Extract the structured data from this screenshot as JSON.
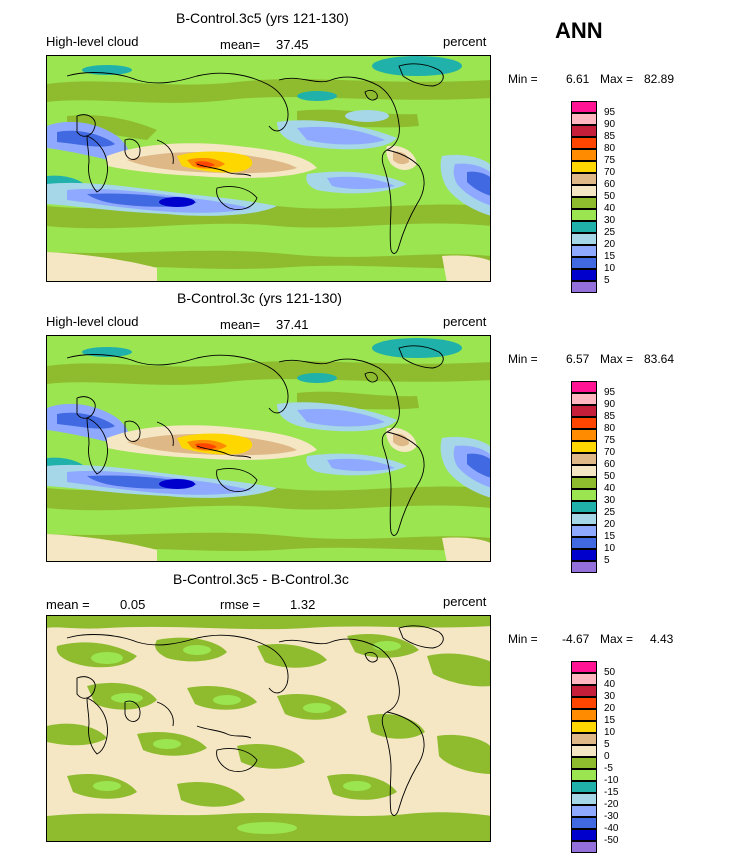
{
  "season": "ANN",
  "panels": [
    {
      "title": "B-Control.3c5 (yrs 121-130)",
      "left_label": "High-level cloud",
      "stat_label": "mean=",
      "stat_value": "37.45",
      "units": "percent",
      "min_label": "Min =",
      "min_value": "6.61",
      "max_label": "Max =",
      "max_value": "82.89"
    },
    {
      "title": "B-Control.3c (yrs 121-130)",
      "left_label": "High-level cloud",
      "stat_label": "mean=",
      "stat_value": "37.41",
      "units": "percent",
      "min_label": "Min =",
      "min_value": "6.57",
      "max_label": "Max =",
      "max_value": "83.64"
    },
    {
      "title": "B-Control.3c5 - B-Control.3c",
      "left_label": "mean =",
      "left_value": "0.05",
      "stat_label": "rmse =",
      "stat_value": "1.32",
      "units": "percent",
      "min_label": "Min =",
      "min_value": "-4.67",
      "max_label": "Max =",
      "max_value": "4.43"
    }
  ],
  "colorbar_abs": {
    "labels": [
      "95",
      "90",
      "85",
      "80",
      "75",
      "70",
      "60",
      "50",
      "40",
      "30",
      "25",
      "20",
      "15",
      "10",
      "5"
    ],
    "colors": [
      "#ff1493",
      "#ffb6c1",
      "#c41e3a",
      "#ff4500",
      "#ff8c00",
      "#ffd700",
      "#deb887",
      "#f5e6c4",
      "#8fbc2f",
      "#9ae550",
      "#20b2aa",
      "#a6d7e8",
      "#8ea9ff",
      "#4169e1",
      "#0000cd",
      "#9370db"
    ]
  },
  "colorbar_diff": {
    "labels": [
      "50",
      "40",
      "30",
      "20",
      "15",
      "10",
      "5",
      "0",
      "-5",
      "-10",
      "-15",
      "-20",
      "-30",
      "-40",
      "-50"
    ],
    "colors": [
      "#ff1493",
      "#ffb6c1",
      "#c41e3a",
      "#ff4500",
      "#ff8c00",
      "#ffd700",
      "#deb887",
      "#f5e6c4",
      "#8fbc2f",
      "#9ae550",
      "#20b2aa",
      "#a6d7e8",
      "#8ea9ff",
      "#4169e1",
      "#0000cd",
      "#9370db"
    ]
  }
}
